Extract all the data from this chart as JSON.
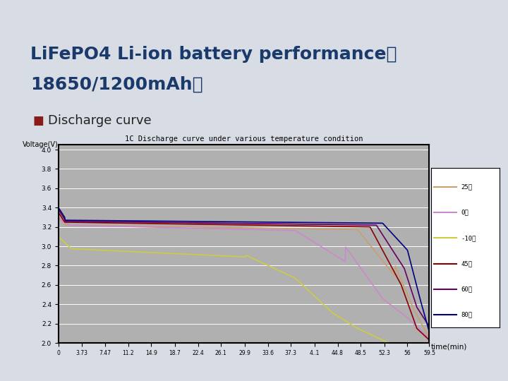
{
  "title_main": "LiFePO4 Li-ion battery performance（18650/1200mAh）",
  "bullet_text": "Discharge curve",
  "chart_title": "1C Discharge curve under various temperature condition",
  "xlabel": "time(min)",
  "ylabel": "Voltage(V)",
  "bg_color": "#e8e8e8",
  "slide_bg": "#d8dce4",
  "plot_bg": "#b0b0b0",
  "yticks": [
    2,
    2.2,
    2.4,
    2.6,
    2.8,
    3,
    3.2,
    3.4,
    3.6,
    3.8,
    4
  ],
  "xtick_labels": [
    "0",
    "3.73",
    "7.47",
    "11.2",
    "14.9",
    "18.7",
    "22.4",
    "26.1",
    "29.9",
    "33.6",
    "37.3",
    "4..1",
    "44.8",
    "48.5",
    "52.3",
    "56",
    "59.5"
  ],
  "ylim": [
    2.0,
    4.05
  ],
  "xlim": [
    0,
    59.5
  ],
  "curves": {
    "25C": {
      "color": "#c8a070",
      "label": "25℃"
    },
    "0C": {
      "color": "#cc88cc",
      "label": "0℃"
    },
    "-10C": {
      "color": "#cccc44",
      "label": "-10℃"
    },
    "45C": {
      "color": "#8b0000",
      "label": "45℃"
    },
    "60C": {
      "color": "#660066",
      "label": "60℃"
    },
    "80C": {
      "color": "#000080",
      "label": "80℃"
    }
  }
}
